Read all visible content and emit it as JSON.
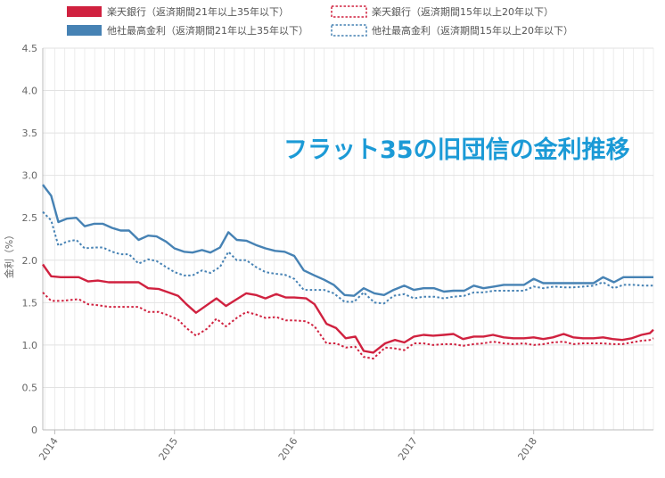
{
  "chart_data": {
    "type": "line",
    "title": "",
    "overlay_title": "フラット35の旧団信の金利推移",
    "xlabel": "",
    "ylabel": "金利（%）",
    "ylim": [
      0,
      4.5
    ],
    "y_ticks": [
      "0",
      "0.5",
      "1.0",
      "1.5",
      "2.0",
      "2.5",
      "3.0",
      "3.5",
      "4.0",
      "4.5"
    ],
    "x_ticks": [
      "2014",
      "2015",
      "2016",
      "2017",
      "2018"
    ],
    "x_range": [
      2013.9,
      2019.0
    ],
    "grid": true,
    "legend_position": "top",
    "series": [
      {
        "name": "楽天銀行（返済期間21年以上35年以下）",
        "color": "#d0213f",
        "style": "solid",
        "values": [
          [
            2013.9,
            1.95
          ],
          [
            2013.97,
            1.81
          ],
          [
            2014.05,
            1.8
          ],
          [
            2014.12,
            1.8
          ],
          [
            2014.2,
            1.8
          ],
          [
            2014.28,
            1.75
          ],
          [
            2014.36,
            1.76
          ],
          [
            2014.45,
            1.74
          ],
          [
            2014.55,
            1.74
          ],
          [
            2014.62,
            1.74
          ],
          [
            2014.7,
            1.74
          ],
          [
            2014.78,
            1.67
          ],
          [
            2014.87,
            1.66
          ],
          [
            2014.95,
            1.62
          ],
          [
            2015.03,
            1.58
          ],
          [
            2015.1,
            1.48
          ],
          [
            2015.18,
            1.38
          ],
          [
            2015.27,
            1.47
          ],
          [
            2015.35,
            1.55
          ],
          [
            2015.43,
            1.46
          ],
          [
            2015.52,
            1.54
          ],
          [
            2015.6,
            1.61
          ],
          [
            2015.68,
            1.59
          ],
          [
            2015.76,
            1.55
          ],
          [
            2015.85,
            1.6
          ],
          [
            2015.93,
            1.56
          ],
          [
            2016.0,
            1.56
          ],
          [
            2016.1,
            1.55
          ],
          [
            2016.17,
            1.48
          ],
          [
            2016.27,
            1.25
          ],
          [
            2016.35,
            1.2
          ],
          [
            2016.43,
            1.08
          ],
          [
            2016.51,
            1.1
          ],
          [
            2016.58,
            0.93
          ],
          [
            2016.66,
            0.91
          ],
          [
            2016.76,
            1.02
          ],
          [
            2016.84,
            1.06
          ],
          [
            2016.92,
            1.03
          ],
          [
            2017.0,
            1.1
          ],
          [
            2017.08,
            1.12
          ],
          [
            2017.16,
            1.11
          ],
          [
            2017.25,
            1.12
          ],
          [
            2017.33,
            1.13
          ],
          [
            2017.41,
            1.07
          ],
          [
            2017.5,
            1.1
          ],
          [
            2017.58,
            1.1
          ],
          [
            2017.66,
            1.12
          ],
          [
            2017.75,
            1.09
          ],
          [
            2017.83,
            1.08
          ],
          [
            2017.92,
            1.08
          ],
          [
            2018.0,
            1.09
          ],
          [
            2018.08,
            1.07
          ],
          [
            2018.16,
            1.09
          ],
          [
            2018.25,
            1.13
          ],
          [
            2018.33,
            1.09
          ],
          [
            2018.41,
            1.08
          ],
          [
            2018.5,
            1.08
          ],
          [
            2018.58,
            1.09
          ],
          [
            2018.66,
            1.07
          ],
          [
            2018.74,
            1.06
          ],
          [
            2018.82,
            1.08
          ],
          [
            2018.9,
            1.12
          ],
          [
            2018.97,
            1.14
          ],
          [
            2019.0,
            1.18
          ]
        ]
      },
      {
        "name": "楽天銀行（返済期間15年以上20年以下）",
        "color": "#d0213f",
        "style": "dotted",
        "values": [
          [
            2013.9,
            1.62
          ],
          [
            2013.97,
            1.52
          ],
          [
            2014.05,
            1.52
          ],
          [
            2014.12,
            1.53
          ],
          [
            2014.2,
            1.54
          ],
          [
            2014.28,
            1.48
          ],
          [
            2014.36,
            1.47
          ],
          [
            2014.45,
            1.45
          ],
          [
            2014.55,
            1.45
          ],
          [
            2014.62,
            1.45
          ],
          [
            2014.7,
            1.45
          ],
          [
            2014.78,
            1.39
          ],
          [
            2014.87,
            1.39
          ],
          [
            2014.95,
            1.35
          ],
          [
            2015.03,
            1.3
          ],
          [
            2015.1,
            1.2
          ],
          [
            2015.18,
            1.11
          ],
          [
            2015.27,
            1.19
          ],
          [
            2015.35,
            1.31
          ],
          [
            2015.43,
            1.22
          ],
          [
            2015.52,
            1.32
          ],
          [
            2015.6,
            1.39
          ],
          [
            2015.68,
            1.36
          ],
          [
            2015.76,
            1.32
          ],
          [
            2015.85,
            1.33
          ],
          [
            2015.93,
            1.29
          ],
          [
            2016.0,
            1.29
          ],
          [
            2016.1,
            1.28
          ],
          [
            2016.17,
            1.22
          ],
          [
            2016.27,
            1.02
          ],
          [
            2016.35,
            1.02
          ],
          [
            2016.43,
            0.97
          ],
          [
            2016.51,
            0.98
          ],
          [
            2016.58,
            0.86
          ],
          [
            2016.66,
            0.84
          ],
          [
            2016.76,
            0.97
          ],
          [
            2016.84,
            0.96
          ],
          [
            2016.92,
            0.94
          ],
          [
            2017.0,
            1.02
          ],
          [
            2017.08,
            1.02
          ],
          [
            2017.16,
            1.0
          ],
          [
            2017.25,
            1.01
          ],
          [
            2017.33,
            1.01
          ],
          [
            2017.41,
            0.99
          ],
          [
            2017.5,
            1.01
          ],
          [
            2017.58,
            1.02
          ],
          [
            2017.66,
            1.04
          ],
          [
            2017.75,
            1.02
          ],
          [
            2017.83,
            1.01
          ],
          [
            2017.92,
            1.02
          ],
          [
            2018.0,
            1.0
          ],
          [
            2018.08,
            1.01
          ],
          [
            2018.16,
            1.03
          ],
          [
            2018.25,
            1.04
          ],
          [
            2018.33,
            1.01
          ],
          [
            2018.41,
            1.02
          ],
          [
            2018.5,
            1.02
          ],
          [
            2018.58,
            1.02
          ],
          [
            2018.66,
            1.01
          ],
          [
            2018.74,
            1.01
          ],
          [
            2018.82,
            1.03
          ],
          [
            2018.9,
            1.05
          ],
          [
            2018.97,
            1.06
          ],
          [
            2019.0,
            1.08
          ]
        ]
      },
      {
        "name": "他社最高金利（返済期間21年以上35年以下）",
        "color": "#4682b4",
        "style": "solid",
        "values": [
          [
            2013.9,
            2.89
          ],
          [
            2013.97,
            2.76
          ],
          [
            2014.03,
            2.45
          ],
          [
            2014.1,
            2.49
          ],
          [
            2014.18,
            2.5
          ],
          [
            2014.25,
            2.4
          ],
          [
            2014.33,
            2.43
          ],
          [
            2014.4,
            2.43
          ],
          [
            2014.48,
            2.38
          ],
          [
            2014.55,
            2.35
          ],
          [
            2014.62,
            2.35
          ],
          [
            2014.7,
            2.24
          ],
          [
            2014.78,
            2.29
          ],
          [
            2014.85,
            2.28
          ],
          [
            2014.93,
            2.22
          ],
          [
            2015.0,
            2.14
          ],
          [
            2015.08,
            2.1
          ],
          [
            2015.15,
            2.09
          ],
          [
            2015.23,
            2.12
          ],
          [
            2015.3,
            2.09
          ],
          [
            2015.38,
            2.15
          ],
          [
            2015.45,
            2.33
          ],
          [
            2015.52,
            2.24
          ],
          [
            2015.6,
            2.23
          ],
          [
            2015.68,
            2.18
          ],
          [
            2015.76,
            2.14
          ],
          [
            2015.84,
            2.11
          ],
          [
            2015.92,
            2.1
          ],
          [
            2016.0,
            2.05
          ],
          [
            2016.08,
            1.88
          ],
          [
            2016.17,
            1.82
          ],
          [
            2016.25,
            1.77
          ],
          [
            2016.33,
            1.71
          ],
          [
            2016.42,
            1.59
          ],
          [
            2016.5,
            1.58
          ],
          [
            2016.58,
            1.67
          ],
          [
            2016.67,
            1.61
          ],
          [
            2016.75,
            1.59
          ],
          [
            2016.83,
            1.65
          ],
          [
            2016.92,
            1.7
          ],
          [
            2017.0,
            1.65
          ],
          [
            2017.08,
            1.67
          ],
          [
            2017.17,
            1.67
          ],
          [
            2017.25,
            1.63
          ],
          [
            2017.33,
            1.64
          ],
          [
            2017.42,
            1.64
          ],
          [
            2017.5,
            1.7
          ],
          [
            2017.58,
            1.67
          ],
          [
            2017.67,
            1.69
          ],
          [
            2017.75,
            1.71
          ],
          [
            2017.83,
            1.71
          ],
          [
            2017.92,
            1.71
          ],
          [
            2018.0,
            1.78
          ],
          [
            2018.08,
            1.73
          ],
          [
            2018.17,
            1.73
          ],
          [
            2018.25,
            1.73
          ],
          [
            2018.33,
            1.73
          ],
          [
            2018.42,
            1.73
          ],
          [
            2018.5,
            1.73
          ],
          [
            2018.58,
            1.8
          ],
          [
            2018.67,
            1.74
          ],
          [
            2018.75,
            1.8
          ],
          [
            2018.83,
            1.8
          ],
          [
            2018.92,
            1.8
          ],
          [
            2019.0,
            1.8
          ]
        ]
      },
      {
        "name": "他社最高金利（返済期間15年以上20年以下）",
        "color": "#4682b4",
        "style": "dotted",
        "values": [
          [
            2013.9,
            2.57
          ],
          [
            2013.97,
            2.47
          ],
          [
            2014.03,
            2.17
          ],
          [
            2014.1,
            2.22
          ],
          [
            2014.18,
            2.24
          ],
          [
            2014.25,
            2.14
          ],
          [
            2014.33,
            2.15
          ],
          [
            2014.4,
            2.15
          ],
          [
            2014.48,
            2.1
          ],
          [
            2014.55,
            2.07
          ],
          [
            2014.62,
            2.07
          ],
          [
            2014.7,
            1.96
          ],
          [
            2014.78,
            2.01
          ],
          [
            2014.85,
            1.99
          ],
          [
            2014.93,
            1.92
          ],
          [
            2015.0,
            1.86
          ],
          [
            2015.08,
            1.82
          ],
          [
            2015.15,
            1.82
          ],
          [
            2015.23,
            1.88
          ],
          [
            2015.3,
            1.85
          ],
          [
            2015.38,
            1.92
          ],
          [
            2015.45,
            2.1
          ],
          [
            2015.52,
            2.0
          ],
          [
            2015.6,
            2.0
          ],
          [
            2015.68,
            1.92
          ],
          [
            2015.76,
            1.86
          ],
          [
            2015.84,
            1.84
          ],
          [
            2015.92,
            1.83
          ],
          [
            2016.0,
            1.78
          ],
          [
            2016.08,
            1.65
          ],
          [
            2016.17,
            1.65
          ],
          [
            2016.25,
            1.65
          ],
          [
            2016.33,
            1.61
          ],
          [
            2016.42,
            1.51
          ],
          [
            2016.5,
            1.51
          ],
          [
            2016.58,
            1.62
          ],
          [
            2016.67,
            1.5
          ],
          [
            2016.75,
            1.49
          ],
          [
            2016.83,
            1.58
          ],
          [
            2016.92,
            1.6
          ],
          [
            2017.0,
            1.55
          ],
          [
            2017.08,
            1.57
          ],
          [
            2017.17,
            1.57
          ],
          [
            2017.25,
            1.55
          ],
          [
            2017.33,
            1.57
          ],
          [
            2017.42,
            1.58
          ],
          [
            2017.5,
            1.62
          ],
          [
            2017.58,
            1.62
          ],
          [
            2017.67,
            1.64
          ],
          [
            2017.75,
            1.64
          ],
          [
            2017.83,
            1.64
          ],
          [
            2017.92,
            1.64
          ],
          [
            2018.0,
            1.69
          ],
          [
            2018.08,
            1.67
          ],
          [
            2018.17,
            1.69
          ],
          [
            2018.25,
            1.68
          ],
          [
            2018.33,
            1.68
          ],
          [
            2018.42,
            1.69
          ],
          [
            2018.5,
            1.7
          ],
          [
            2018.58,
            1.74
          ],
          [
            2018.67,
            1.67
          ],
          [
            2018.75,
            1.71
          ],
          [
            2018.83,
            1.71
          ],
          [
            2018.92,
            1.7
          ],
          [
            2019.0,
            1.7
          ]
        ]
      }
    ]
  }
}
